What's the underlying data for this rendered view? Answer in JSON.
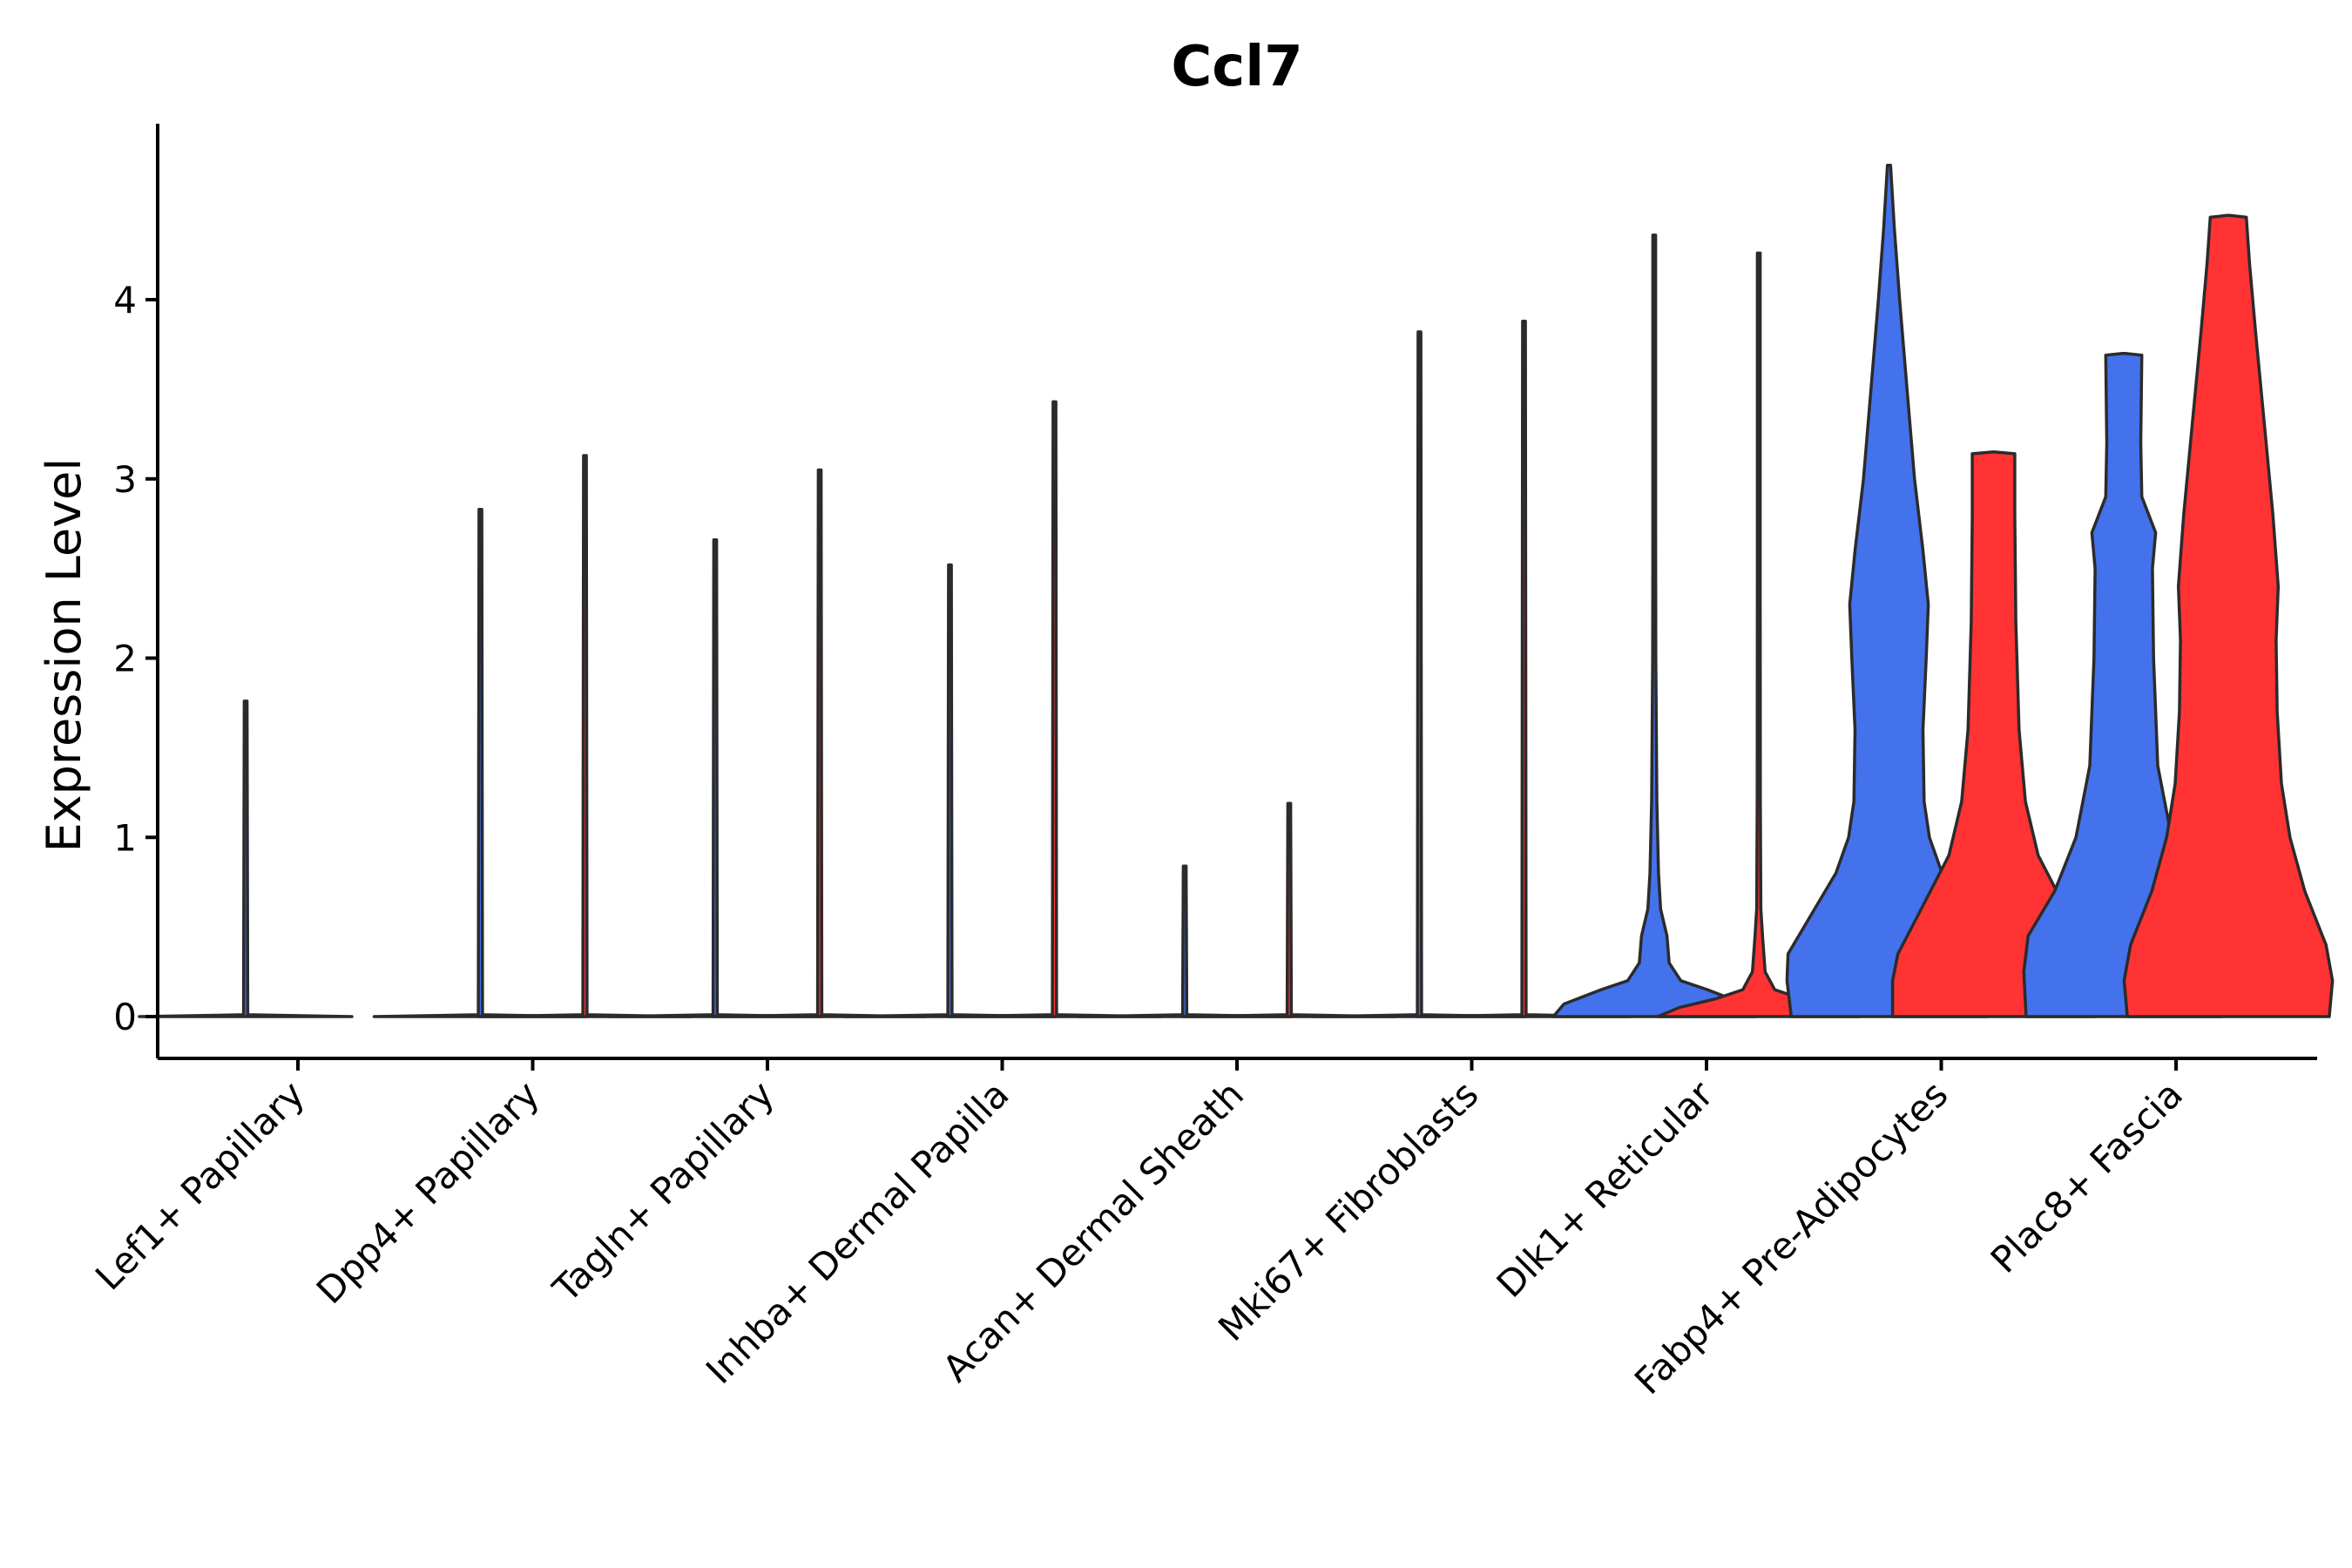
{
  "chart_data": {
    "type": "violin",
    "title": "Ccl7",
    "xlabel": "",
    "ylabel": "Expression Level",
    "ylim": [
      -0.24,
      5.0
    ],
    "yticks": [
      0,
      1,
      2,
      3,
      4
    ],
    "categories": [
      "Lef1+ Papillary",
      "Dpp4+ Papillary",
      "Tagln+ Papillary",
      "Inhba+ Dermal Papilla",
      "Acan+ Dermal Sheath",
      "Mki67+ Fibroblasts",
      "Dlk1+ Reticular",
      "Fabp4+ Pre-Adipocytes",
      "Plac8+ Fascia"
    ],
    "series_colors": [
      "#4472EC",
      "#FF3333"
    ],
    "violins": [
      {
        "category": 0,
        "series": 0,
        "max": 1.76,
        "density": [
          [
            0,
            1.0
          ],
          [
            0.01,
            0.02
          ],
          [
            1.76,
            0.002
          ]
        ]
      },
      {
        "category": 1,
        "series": 0,
        "max": 2.83,
        "density": [
          [
            0,
            1.0
          ],
          [
            0.01,
            0.02
          ],
          [
            2.83,
            0.002
          ]
        ]
      },
      {
        "category": 1,
        "series": 1,
        "max": 3.13,
        "density": [
          [
            0,
            1.0
          ],
          [
            0.01,
            0.02
          ],
          [
            3.13,
            0.002
          ]
        ]
      },
      {
        "category": 2,
        "series": 0,
        "max": 2.66,
        "density": [
          [
            0,
            1.0
          ],
          [
            0.01,
            0.02
          ],
          [
            2.66,
            0.002
          ]
        ]
      },
      {
        "category": 2,
        "series": 1,
        "max": 3.05,
        "density": [
          [
            0,
            1.0
          ],
          [
            0.01,
            0.02
          ],
          [
            3.05,
            0.002
          ]
        ]
      },
      {
        "category": 3,
        "series": 0,
        "max": 2.52,
        "density": [
          [
            0,
            1.0
          ],
          [
            0.01,
            0.02
          ],
          [
            2.52,
            0.002
          ]
        ]
      },
      {
        "category": 3,
        "series": 1,
        "max": 3.43,
        "density": [
          [
            0,
            1.0
          ],
          [
            0.01,
            0.02
          ],
          [
            3.43,
            0.002
          ]
        ]
      },
      {
        "category": 4,
        "series": 0,
        "max": 0.84,
        "density": [
          [
            0,
            1.0
          ],
          [
            0.01,
            0.02
          ],
          [
            0.84,
            0.002
          ]
        ]
      },
      {
        "category": 4,
        "series": 1,
        "max": 1.19,
        "density": [
          [
            0,
            1.0
          ],
          [
            0.01,
            0.02
          ],
          [
            1.19,
            0.002
          ]
        ]
      },
      {
        "category": 5,
        "series": 0,
        "max": 3.82,
        "density": [
          [
            0,
            1.0
          ],
          [
            0.01,
            0.02
          ],
          [
            3.82,
            0.002
          ]
        ]
      },
      {
        "category": 5,
        "series": 1,
        "max": 3.88,
        "density": [
          [
            0,
            1.0
          ],
          [
            0.01,
            0.02
          ],
          [
            3.88,
            0.002
          ]
        ]
      },
      {
        "category": 6,
        "series": 0,
        "max": 4.36,
        "density": [
          [
            0,
            0.95
          ],
          [
            0.07,
            0.85
          ],
          [
            0.15,
            0.5
          ],
          [
            0.2,
            0.25
          ],
          [
            0.3,
            0.14
          ],
          [
            0.45,
            0.12
          ],
          [
            0.6,
            0.06
          ],
          [
            0.8,
            0.04
          ],
          [
            1.2,
            0.025
          ],
          [
            2.0,
            0.015
          ],
          [
            2.7,
            0.01
          ],
          [
            4.36,
            0.004
          ]
        ]
      },
      {
        "category": 6,
        "series": 1,
        "max": 4.26,
        "density": [
          [
            0,
            0.95
          ],
          [
            0.05,
            0.75
          ],
          [
            0.1,
            0.4
          ],
          [
            0.15,
            0.15
          ],
          [
            0.25,
            0.06
          ],
          [
            0.45,
            0.035
          ],
          [
            0.6,
            0.02
          ],
          [
            1.2,
            0.015
          ],
          [
            2.5,
            0.01
          ],
          [
            4.26,
            0.004
          ]
        ]
      },
      {
        "category": 7,
        "series": 0,
        "max": 4.75,
        "density": [
          [
            0,
            0.92
          ],
          [
            0.2,
            0.96
          ],
          [
            0.35,
            0.95
          ],
          [
            0.6,
            0.7
          ],
          [
            0.8,
            0.5
          ],
          [
            1.0,
            0.38
          ],
          [
            1.2,
            0.33
          ],
          [
            1.6,
            0.32
          ],
          [
            2.0,
            0.35
          ],
          [
            2.3,
            0.37
          ],
          [
            2.6,
            0.32
          ],
          [
            3.0,
            0.24
          ],
          [
            3.5,
            0.17
          ],
          [
            4.0,
            0.1
          ],
          [
            4.4,
            0.05
          ],
          [
            4.75,
            0.015
          ]
        ]
      },
      {
        "category": 7,
        "series": 1,
        "max": 3.15,
        "density": [
          [
            0,
            0.95
          ],
          [
            0.2,
            0.95
          ],
          [
            0.35,
            0.9
          ],
          [
            0.6,
            0.68
          ],
          [
            0.9,
            0.42
          ],
          [
            1.2,
            0.3
          ],
          [
            1.6,
            0.24
          ],
          [
            2.2,
            0.21
          ],
          [
            2.8,
            0.2
          ],
          [
            3.14,
            0.2
          ],
          [
            3.15,
            0
          ]
        ]
      },
      {
        "category": 8,
        "series": 0,
        "max": 3.7,
        "density": [
          [
            0,
            0.92
          ],
          [
            0.25,
            0.94
          ],
          [
            0.45,
            0.9
          ],
          [
            0.7,
            0.65
          ],
          [
            1.0,
            0.45
          ],
          [
            1.4,
            0.32
          ],
          [
            2.0,
            0.28
          ],
          [
            2.5,
            0.27
          ],
          [
            2.7,
            0.3
          ],
          [
            2.9,
            0.17
          ],
          [
            3.2,
            0.16
          ],
          [
            3.69,
            0.17
          ],
          [
            3.7,
            0
          ]
        ]
      },
      {
        "category": 8,
        "series": 1,
        "max": 4.47,
        "density": [
          [
            0,
            0.95
          ],
          [
            0.2,
            0.98
          ],
          [
            0.4,
            0.92
          ],
          [
            0.7,
            0.72
          ],
          [
            1.0,
            0.58
          ],
          [
            1.3,
            0.5
          ],
          [
            1.7,
            0.46
          ],
          [
            2.1,
            0.45
          ],
          [
            2.4,
            0.47
          ],
          [
            2.8,
            0.42
          ],
          [
            3.3,
            0.34
          ],
          [
            3.8,
            0.26
          ],
          [
            4.2,
            0.2
          ],
          [
            4.46,
            0.17
          ],
          [
            4.47,
            0
          ]
        ]
      }
    ]
  }
}
